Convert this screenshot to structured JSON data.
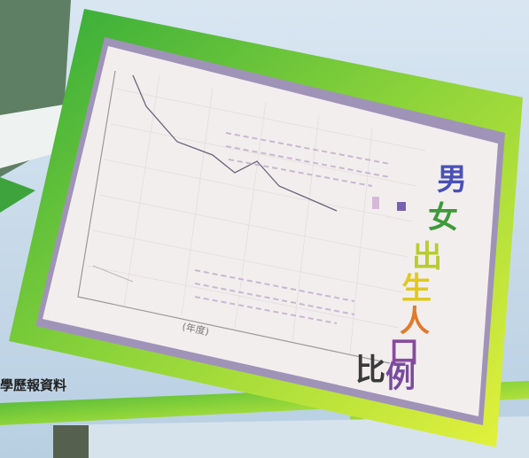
{
  "poster": {
    "title": [
      "男",
      "女",
      "出",
      "生",
      "人",
      "口",
      "比",
      "例"
    ],
    "x_axis_label": "(年度)"
  },
  "caption": "學歷報資料"
}
